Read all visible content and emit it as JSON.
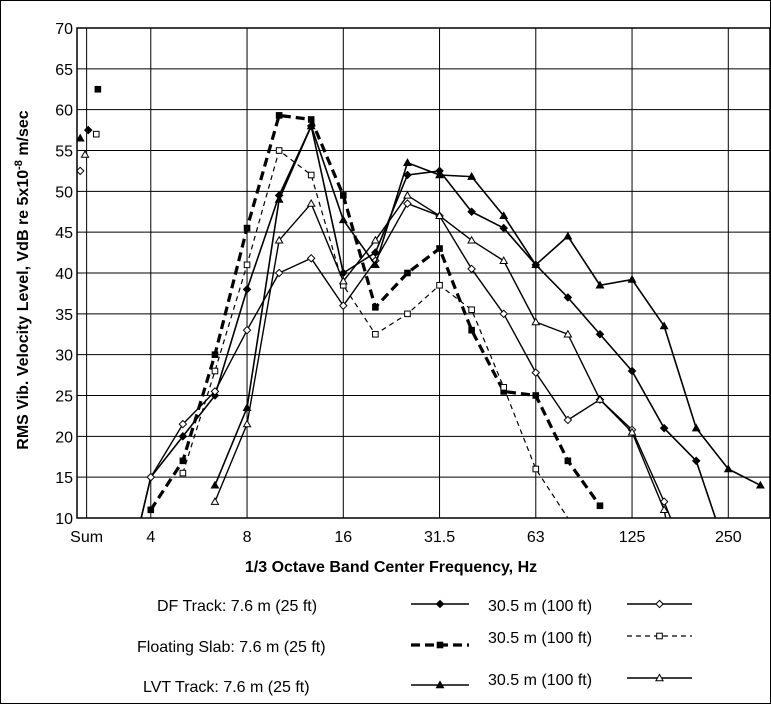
{
  "chart_data": {
    "type": "line",
    "xlabel": "1/3 Octave Band Center Frequency, Hz",
    "ylabel": "RMS Vib. Velocity Level, VdB re 5x10",
    "ylabel_exponent": "-8",
    "ylabel_unit": " m/sec",
    "ylim": [
      10,
      70
    ],
    "yticks": [
      10,
      15,
      20,
      25,
      30,
      35,
      40,
      45,
      50,
      55,
      60,
      65,
      70
    ],
    "x_scale": "log2 (1/3 octave bands)",
    "xticks": [
      {
        "label": "Sum",
        "band": -2
      },
      {
        "label": "4",
        "band": 0
      },
      {
        "label": "8",
        "band": 3
      },
      {
        "label": "16",
        "band": 6
      },
      {
        "label": "31.5",
        "band": 9
      },
      {
        "label": "63",
        "band": 12
      },
      {
        "label": "125",
        "band": 15
      },
      {
        "label": "250",
        "band": 18
      }
    ],
    "band_frequencies_hz": [
      "3.15",
      "4",
      "5",
      "6.3",
      "8",
      "10",
      "12.5",
      "16",
      "20",
      "25",
      "31.5",
      "40",
      "50",
      "63",
      "80",
      "100",
      "125",
      "160",
      "200",
      "250",
      "315"
    ],
    "grid": true,
    "legend": [
      {
        "label": "DF Track: 7.6 m (25 ft)",
        "series_index": 0
      },
      {
        "label": "30.5 m (100 ft)",
        "series_index": 1
      },
      {
        "label": "Floating Slab: 7.6 m (25 ft)",
        "series_index": 2
      },
      {
        "label": "30.5 m (100 ft)",
        "series_index": 3
      },
      {
        "label": "LVT Track: 7.6 m (25 ft)",
        "series_index": 4
      },
      {
        "label": "30.5 m (100 ft)",
        "series_index": 5
      }
    ],
    "series": [
      {
        "group": "DF Track",
        "distance": "7.6 m (25 ft)",
        "marker": "diamond-filled",
        "line": "solid",
        "width": 1.6,
        "sum": 57.5,
        "points": [
          [
            -0.3,
            10
          ],
          [
            0,
            15
          ],
          [
            1,
            20
          ],
          [
            2,
            25
          ],
          [
            3,
            38
          ],
          [
            4,
            49.5
          ],
          [
            5,
            58
          ],
          [
            6,
            40
          ],
          [
            7,
            42.5
          ],
          [
            8,
            52
          ],
          [
            9,
            52.5
          ],
          [
            10,
            47.5
          ],
          [
            11,
            45.5
          ],
          [
            12,
            41
          ],
          [
            13,
            37
          ],
          [
            14,
            32.5
          ],
          [
            15,
            28
          ],
          [
            16,
            21
          ],
          [
            17,
            17
          ],
          [
            17.6,
            10
          ]
        ]
      },
      {
        "group": "DF Track",
        "distance": "30.5 m (100 ft)",
        "marker": "diamond-open",
        "line": "solid",
        "width": 1.4,
        "sum": 52.5,
        "points": [
          [
            -0.3,
            10
          ],
          [
            0,
            15
          ],
          [
            1,
            21.5
          ],
          [
            2,
            25.5
          ],
          [
            3,
            33
          ],
          [
            4,
            40
          ],
          [
            5,
            41.8
          ],
          [
            6,
            36
          ],
          [
            7,
            41.5
          ],
          [
            8,
            48.5
          ],
          [
            9,
            47
          ],
          [
            10,
            40.5
          ],
          [
            11,
            35
          ],
          [
            12,
            27.8
          ],
          [
            13,
            22
          ],
          [
            14,
            24.5
          ],
          [
            15,
            20.8
          ],
          [
            16,
            12
          ],
          [
            16.2,
            10
          ]
        ]
      },
      {
        "group": "Floating Slab",
        "distance": "7.6 m (25 ft)",
        "marker": "square-filled",
        "line": "dashed-heavy",
        "width": 3.2,
        "sum": 62.5,
        "points": [
          [
            0,
            11
          ],
          [
            1,
            17
          ],
          [
            2,
            30
          ],
          [
            3,
            45.5
          ],
          [
            4,
            59.3
          ],
          [
            5,
            58.8
          ],
          [
            6,
            49.5
          ],
          [
            7,
            35.8
          ],
          [
            8,
            40
          ],
          [
            9,
            43
          ],
          [
            10,
            33
          ],
          [
            11,
            25.5
          ],
          [
            12,
            25
          ],
          [
            13,
            17
          ],
          [
            14,
            11.5
          ]
        ]
      },
      {
        "group": "Floating Slab",
        "distance": "30.5 m (100 ft)",
        "marker": "square-open",
        "line": "dashed-thin",
        "width": 1.2,
        "sum": 57,
        "points": [
          [
            1,
            15.5
          ],
          [
            2,
            28
          ],
          [
            3,
            41
          ],
          [
            4,
            55
          ],
          [
            5,
            52
          ],
          [
            6,
            38.5
          ],
          [
            7,
            32.5
          ],
          [
            8,
            35
          ],
          [
            9,
            38.5
          ],
          [
            10,
            35.5
          ],
          [
            11,
            26
          ],
          [
            12,
            16
          ],
          [
            13,
            10
          ]
        ]
      },
      {
        "group": "LVT Track",
        "distance": "7.6 m (25 ft)",
        "marker": "triangle-filled",
        "line": "solid",
        "width": 1.6,
        "sum": 56.5,
        "points": [
          [
            2,
            14
          ],
          [
            3,
            23.5
          ],
          [
            4,
            49
          ],
          [
            5,
            58
          ],
          [
            6,
            46.5
          ],
          [
            7,
            41
          ],
          [
            8,
            53.5
          ],
          [
            9,
            52
          ],
          [
            10,
            51.8
          ],
          [
            11,
            47
          ],
          [
            12,
            41
          ],
          [
            13,
            44.5
          ],
          [
            14,
            38.5
          ],
          [
            15,
            39.2
          ],
          [
            16,
            33.5
          ],
          [
            17,
            21
          ],
          [
            18,
            16
          ],
          [
            19,
            14
          ]
        ]
      },
      {
        "group": "LVT Track",
        "distance": "30.5 m (100 ft)",
        "marker": "triangle-open",
        "line": "solid",
        "width": 1.4,
        "sum": 54.5,
        "points": [
          [
            2,
            12
          ],
          [
            3,
            21.5
          ],
          [
            4,
            44
          ],
          [
            5,
            48.5
          ],
          [
            6,
            39
          ],
          [
            7,
            44
          ],
          [
            8,
            49.5
          ],
          [
            9,
            47
          ],
          [
            10,
            44
          ],
          [
            11,
            41.5
          ],
          [
            12,
            34
          ],
          [
            13,
            32.5
          ],
          [
            14,
            24.5
          ],
          [
            15,
            20.5
          ],
          [
            16,
            11
          ],
          [
            16.05,
            10
          ]
        ]
      }
    ]
  }
}
